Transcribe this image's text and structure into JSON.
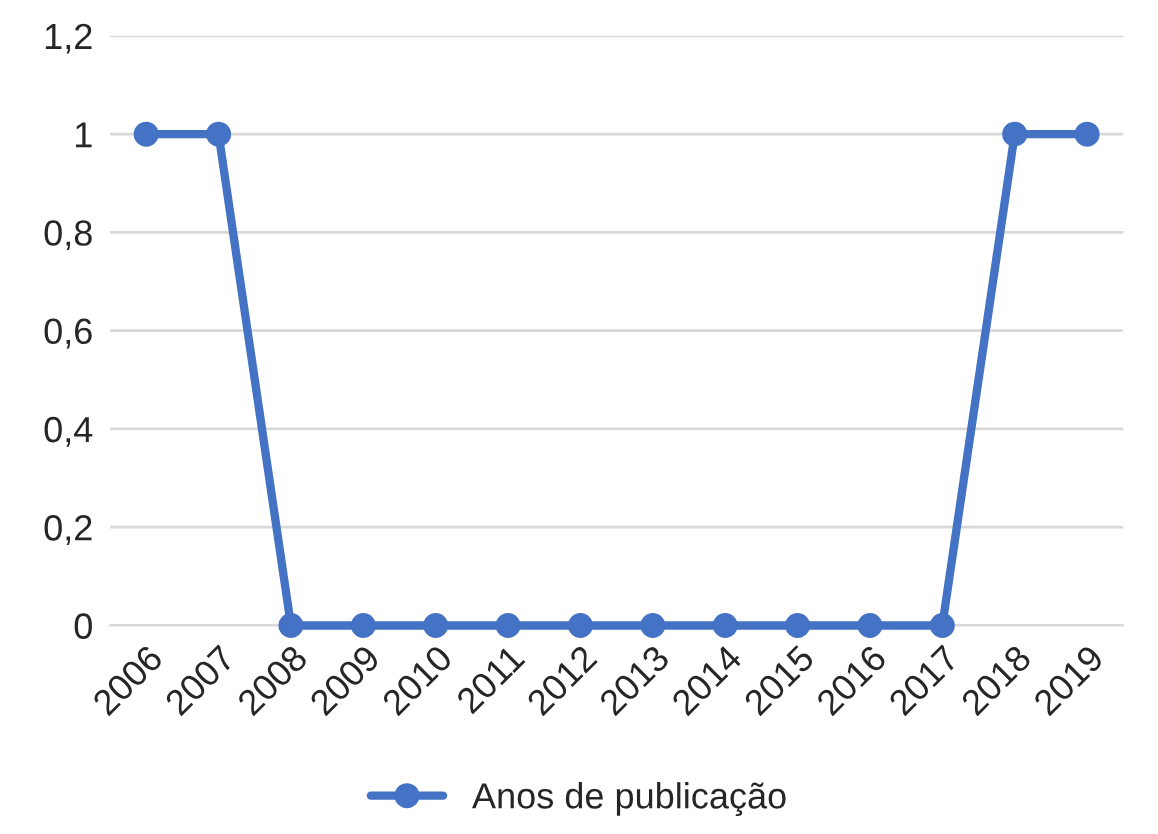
{
  "chart_data": {
    "type": "line",
    "categories": [
      "2006",
      "2007",
      "2008",
      "2009",
      "2010",
      "2011",
      "2012",
      "2013",
      "2014",
      "2015",
      "2016",
      "2017",
      "2018",
      "2019"
    ],
    "series": [
      {
        "name": "Anos de publicação",
        "color": "#4472c4",
        "values": [
          1,
          1,
          0,
          0,
          0,
          0,
          0,
          0,
          0,
          0,
          0,
          0,
          1,
          1
        ]
      }
    ],
    "ylim": [
      0,
      1.2
    ],
    "yticks": [
      0,
      {
        "value": 0.2,
        "label": "0,2"
      },
      {
        "value": 0.4,
        "label": "0,4"
      },
      {
        "value": 0.6,
        "label": "0,6"
      },
      {
        "value": 0.8,
        "label": "0,8"
      },
      1,
      {
        "value": 1.2,
        "label": "1,2"
      }
    ],
    "grid": "y",
    "legend": "bottom",
    "marker": "circle",
    "line_style": "solid"
  }
}
